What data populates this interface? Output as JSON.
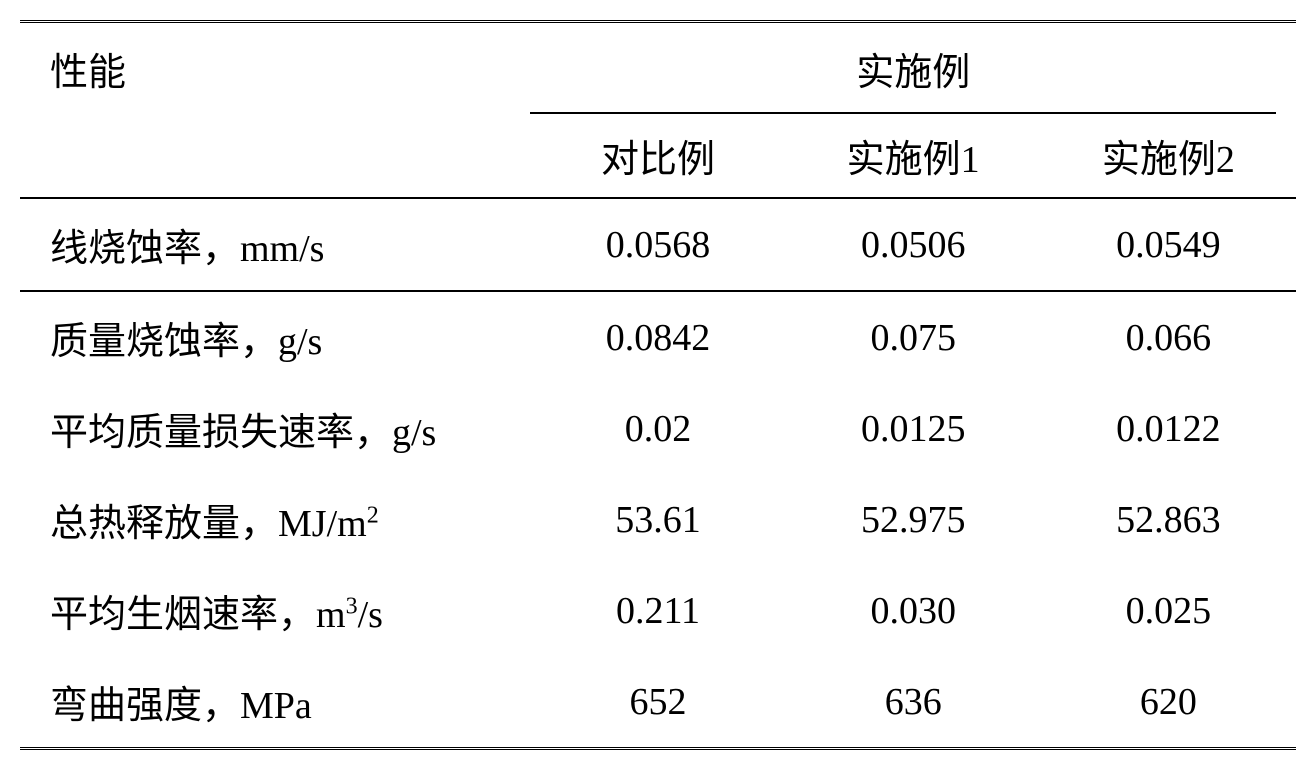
{
  "table": {
    "header": {
      "property_label": "性能",
      "group_label": "实施例",
      "subheaders": [
        "对比例",
        "实施例1",
        "实施例2"
      ]
    },
    "rows": [
      {
        "label": "线烧蚀率，mm/s",
        "values": [
          "0.0568",
          "0.0506",
          "0.0549"
        ],
        "bordered": true
      },
      {
        "label": "质量烧蚀率，g/s",
        "values": [
          "0.0842",
          "0.075",
          "0.066"
        ],
        "bordered": false
      },
      {
        "label": "平均质量损失速率，g/s",
        "values": [
          "0.02",
          "0.0125",
          "0.0122"
        ],
        "bordered": false
      },
      {
        "label_html": "总热释放量，MJ/m<sup>2</sup>",
        "label": "总热释放量，MJ/m²",
        "values": [
          "53.61",
          "52.975",
          "52.863"
        ],
        "bordered": false
      },
      {
        "label_html": "平均生烟速率，m<sup>3</sup>/s",
        "label": "平均生烟速率，m³/s",
        "values": [
          "0.211",
          "0.030",
          "0.025"
        ],
        "bordered": false
      },
      {
        "label": "弯曲强度，MPa",
        "values": [
          "652",
          "636",
          "620"
        ],
        "bordered": false
      }
    ],
    "styling": {
      "font_family": "SimSun",
      "font_size_pt": 38,
      "text_color": "#000000",
      "background_color": "#ffffff",
      "border_color": "#000000",
      "double_border_width": 3,
      "single_border_width": 2,
      "col_widths_percent": [
        40,
        20,
        20,
        20
      ]
    }
  }
}
